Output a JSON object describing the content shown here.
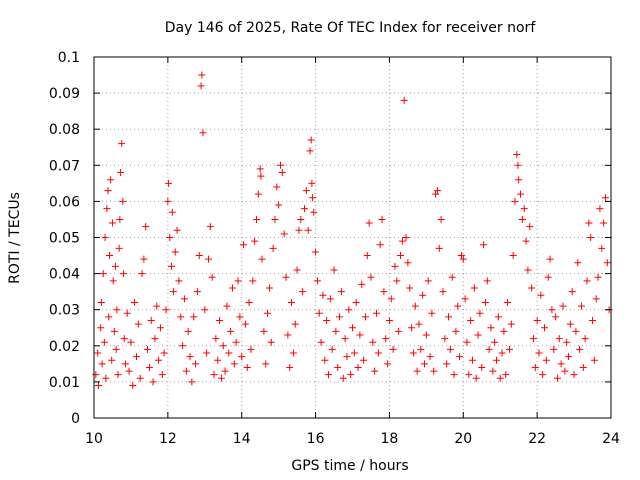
{
  "chart_data": {
    "type": "scatter",
    "title": "Day 146 of 2025, Rate Of TEC Index for receiver norf",
    "xlabel": "GPS time / hours",
    "ylabel": "ROTI / TECUs",
    "xlim": [
      10,
      24
    ],
    "ylim": [
      0,
      0.1
    ],
    "x_ticks": [
      10,
      12,
      14,
      16,
      18,
      20,
      22,
      24
    ],
    "x_tick_labels": [
      "10",
      "12",
      "14",
      "16",
      "18",
      "20",
      "22",
      "24"
    ],
    "y_ticks": [
      0,
      0.01,
      0.02,
      0.03,
      0.04,
      0.05,
      0.06,
      0.07,
      0.08,
      0.09,
      0.1
    ],
    "y_tick_labels": [
      "0",
      "0.01",
      "0.02",
      "0.03",
      "0.04",
      "0.05",
      "0.06",
      "0.07",
      "0.08",
      "0.09",
      "0.1"
    ],
    "grid": true,
    "marker": "plus",
    "color": "#ff0000",
    "series": [
      {
        "name": "ROTI",
        "points": [
          [
            10.05,
            0.012
          ],
          [
            10.1,
            0.018
          ],
          [
            10.12,
            0.009
          ],
          [
            10.18,
            0.025
          ],
          [
            10.2,
            0.032
          ],
          [
            10.22,
            0.015
          ],
          [
            10.25,
            0.04
          ],
          [
            10.28,
            0.021
          ],
          [
            10.3,
            0.05
          ],
          [
            10.32,
            0.011
          ],
          [
            10.35,
            0.058
          ],
          [
            10.38,
            0.063
          ],
          [
            10.4,
            0.028
          ],
          [
            10.42,
            0.045
          ],
          [
            10.45,
            0.066
          ],
          [
            10.48,
            0.016
          ],
          [
            10.5,
            0.054
          ],
          [
            10.52,
            0.038
          ],
          [
            10.55,
            0.024
          ],
          [
            10.58,
            0.042
          ],
          [
            10.6,
            0.019
          ],
          [
            10.62,
            0.03
          ],
          [
            10.65,
            0.012
          ],
          [
            10.68,
            0.047
          ],
          [
            10.7,
            0.055
          ],
          [
            10.72,
            0.068
          ],
          [
            10.75,
            0.076
          ],
          [
            10.78,
            0.06
          ],
          [
            10.8,
            0.04
          ],
          [
            10.82,
            0.022
          ],
          [
            10.85,
            0.015
          ],
          [
            10.9,
            0.029
          ],
          [
            10.95,
            0.013
          ],
          [
            11.0,
            0.021
          ],
          [
            11.05,
            0.009
          ],
          [
            11.1,
            0.032
          ],
          [
            11.15,
            0.017
          ],
          [
            11.2,
            0.026
          ],
          [
            11.25,
            0.011
          ],
          [
            11.3,
            0.04
          ],
          [
            11.35,
            0.044
          ],
          [
            11.4,
            0.053
          ],
          [
            11.45,
            0.019
          ],
          [
            11.5,
            0.014
          ],
          [
            11.55,
            0.027
          ],
          [
            11.6,
            0.01
          ],
          [
            11.65,
            0.022
          ],
          [
            11.7,
            0.031
          ],
          [
            11.75,
            0.016
          ],
          [
            11.8,
            0.025
          ],
          [
            11.85,
            0.012
          ],
          [
            11.9,
            0.018
          ],
          [
            11.95,
            0.03
          ],
          [
            12.0,
            0.06
          ],
          [
            12.02,
            0.065
          ],
          [
            12.05,
            0.05
          ],
          [
            12.1,
            0.042
          ],
          [
            12.12,
            0.057
          ],
          [
            12.15,
            0.035
          ],
          [
            12.2,
            0.046
          ],
          [
            12.25,
            0.052
          ],
          [
            12.3,
            0.038
          ],
          [
            12.35,
            0.028
          ],
          [
            12.4,
            0.02
          ],
          [
            12.45,
            0.033
          ],
          [
            12.5,
            0.013
          ],
          [
            12.55,
            0.024
          ],
          [
            12.6,
            0.017
          ],
          [
            12.65,
            0.01
          ],
          [
            12.7,
            0.028
          ],
          [
            12.75,
            0.015
          ],
          [
            12.8,
            0.035
          ],
          [
            12.85,
            0.045
          ],
          [
            12.9,
            0.092
          ],
          [
            12.92,
            0.095
          ],
          [
            12.95,
            0.079
          ],
          [
            13.0,
            0.03
          ],
          [
            13.05,
            0.018
          ],
          [
            13.1,
            0.044
          ],
          [
            13.15,
            0.053
          ],
          [
            13.2,
            0.039
          ],
          [
            13.25,
            0.012
          ],
          [
            13.3,
            0.022
          ],
          [
            13.35,
            0.016
          ],
          [
            13.4,
            0.027
          ],
          [
            13.45,
            0.011
          ],
          [
            13.5,
            0.02
          ],
          [
            13.55,
            0.013
          ],
          [
            13.6,
            0.031
          ],
          [
            13.65,
            0.018
          ],
          [
            13.7,
            0.024
          ],
          [
            13.75,
            0.036
          ],
          [
            13.8,
            0.015
          ],
          [
            13.85,
            0.021
          ],
          [
            13.9,
            0.038
          ],
          [
            13.95,
            0.028
          ],
          [
            14.0,
            0.017
          ],
          [
            14.05,
            0.048
          ],
          [
            14.1,
            0.026
          ],
          [
            14.15,
            0.014
          ],
          [
            14.2,
            0.032
          ],
          [
            14.25,
            0.019
          ],
          [
            14.3,
            0.038
          ],
          [
            14.35,
            0.049
          ],
          [
            14.4,
            0.055
          ],
          [
            14.45,
            0.062
          ],
          [
            14.5,
            0.069
          ],
          [
            14.52,
            0.067
          ],
          [
            14.55,
            0.044
          ],
          [
            14.6,
            0.024
          ],
          [
            14.65,
            0.015
          ],
          [
            14.7,
            0.029
          ],
          [
            14.75,
            0.036
          ],
          [
            14.8,
            0.021
          ],
          [
            14.85,
            0.047
          ],
          [
            14.9,
            0.055
          ],
          [
            14.95,
            0.064
          ],
          [
            15.0,
            0.059
          ],
          [
            15.05,
            0.07
          ],
          [
            15.1,
            0.068
          ],
          [
            15.15,
            0.051
          ],
          [
            15.2,
            0.039
          ],
          [
            15.25,
            0.023
          ],
          [
            15.3,
            0.014
          ],
          [
            15.35,
            0.032
          ],
          [
            15.4,
            0.018
          ],
          [
            15.45,
            0.026
          ],
          [
            15.5,
            0.041
          ],
          [
            15.55,
            0.052
          ],
          [
            15.6,
            0.055
          ],
          [
            15.65,
            0.035
          ],
          [
            15.7,
            0.058
          ],
          [
            15.75,
            0.063
          ],
          [
            15.8,
            0.052
          ],
          [
            15.85,
            0.074
          ],
          [
            15.88,
            0.077
          ],
          [
            15.9,
            0.065
          ],
          [
            15.92,
            0.061
          ],
          [
            15.95,
            0.057
          ],
          [
            16.0,
            0.046
          ],
          [
            16.05,
            0.038
          ],
          [
            16.1,
            0.029
          ],
          [
            16.15,
            0.021
          ],
          [
            16.2,
            0.034
          ],
          [
            16.25,
            0.016
          ],
          [
            16.3,
            0.027
          ],
          [
            16.35,
            0.012
          ],
          [
            16.4,
            0.033
          ],
          [
            16.45,
            0.019
          ],
          [
            16.5,
            0.041
          ],
          [
            16.55,
            0.024
          ],
          [
            16.6,
            0.014
          ],
          [
            16.65,
            0.028
          ],
          [
            16.7,
            0.035
          ],
          [
            16.75,
            0.011
          ],
          [
            16.8,
            0.022
          ],
          [
            16.85,
            0.017
          ],
          [
            16.9,
            0.03
          ],
          [
            16.95,
            0.012
          ],
          [
            17.0,
            0.025
          ],
          [
            17.05,
            0.018
          ],
          [
            17.1,
            0.032
          ],
          [
            17.15,
            0.014
          ],
          [
            17.2,
            0.023
          ],
          [
            17.25,
            0.037
          ],
          [
            17.3,
            0.016
          ],
          [
            17.35,
            0.028
          ],
          [
            17.4,
            0.045
          ],
          [
            17.45,
            0.054
          ],
          [
            17.5,
            0.039
          ],
          [
            17.55,
            0.021
          ],
          [
            17.6,
            0.013
          ],
          [
            17.65,
            0.029
          ],
          [
            17.7,
            0.018
          ],
          [
            17.75,
            0.048
          ],
          [
            17.8,
            0.055
          ],
          [
            17.85,
            0.035
          ],
          [
            17.9,
            0.022
          ],
          [
            17.95,
            0.015
          ],
          [
            18.0,
            0.027
          ],
          [
            18.05,
            0.033
          ],
          [
            18.1,
            0.019
          ],
          [
            18.15,
            0.042
          ],
          [
            18.2,
            0.038
          ],
          [
            18.25,
            0.024
          ],
          [
            18.3,
            0.045
          ],
          [
            18.35,
            0.049
          ],
          [
            18.4,
            0.088
          ],
          [
            18.45,
            0.05
          ],
          [
            18.5,
            0.043
          ],
          [
            18.55,
            0.036
          ],
          [
            18.6,
            0.025
          ],
          [
            18.65,
            0.018
          ],
          [
            18.7,
            0.031
          ],
          [
            18.75,
            0.013
          ],
          [
            18.8,
            0.026
          ],
          [
            18.85,
            0.019
          ],
          [
            18.9,
            0.034
          ],
          [
            18.95,
            0.015
          ],
          [
            19.0,
            0.023
          ],
          [
            19.05,
            0.038
          ],
          [
            19.1,
            0.017
          ],
          [
            19.15,
            0.029
          ],
          [
            19.2,
            0.013
          ],
          [
            19.25,
            0.062
          ],
          [
            19.3,
            0.063
          ],
          [
            19.35,
            0.047
          ],
          [
            19.4,
            0.055
          ],
          [
            19.45,
            0.035
          ],
          [
            19.5,
            0.022
          ],
          [
            19.55,
            0.015
          ],
          [
            19.6,
            0.028
          ],
          [
            19.65,
            0.019
          ],
          [
            19.7,
            0.039
          ],
          [
            19.75,
            0.012
          ],
          [
            19.8,
            0.024
          ],
          [
            19.85,
            0.031
          ],
          [
            19.9,
            0.017
          ],
          [
            19.95,
            0.045
          ],
          [
            20.0,
            0.044
          ],
          [
            20.05,
            0.033
          ],
          [
            20.1,
            0.021
          ],
          [
            20.15,
            0.012
          ],
          [
            20.2,
            0.027
          ],
          [
            20.25,
            0.016
          ],
          [
            20.3,
            0.036
          ],
          [
            20.35,
            0.011
          ],
          [
            20.4,
            0.023
          ],
          [
            20.45,
            0.029
          ],
          [
            20.5,
            0.014
          ],
          [
            20.55,
            0.048
          ],
          [
            20.6,
            0.032
          ],
          [
            20.65,
            0.038
          ],
          [
            20.7,
            0.019
          ],
          [
            20.75,
            0.025
          ],
          [
            20.8,
            0.013
          ],
          [
            20.85,
            0.021
          ],
          [
            20.9,
            0.016
          ],
          [
            20.95,
            0.028
          ],
          [
            21.0,
            0.011
          ],
          [
            21.05,
            0.018
          ],
          [
            21.1,
            0.024
          ],
          [
            21.15,
            0.012
          ],
          [
            21.2,
            0.032
          ],
          [
            21.25,
            0.019
          ],
          [
            21.3,
            0.026
          ],
          [
            21.35,
            0.045
          ],
          [
            21.4,
            0.06
          ],
          [
            21.45,
            0.073
          ],
          [
            21.48,
            0.07
          ],
          [
            21.5,
            0.066
          ],
          [
            21.55,
            0.062
          ],
          [
            21.6,
            0.055
          ],
          [
            21.65,
            0.058
          ],
          [
            21.7,
            0.049
          ],
          [
            21.75,
            0.041
          ],
          [
            21.8,
            0.053
          ],
          [
            21.85,
            0.036
          ],
          [
            21.9,
            0.022
          ],
          [
            21.95,
            0.014
          ],
          [
            22.0,
            0.027
          ],
          [
            22.05,
            0.018
          ],
          [
            22.1,
            0.034
          ],
          [
            22.15,
            0.012
          ],
          [
            22.2,
            0.025
          ],
          [
            22.25,
            0.016
          ],
          [
            22.3,
            0.039
          ],
          [
            22.35,
            0.044
          ],
          [
            22.4,
            0.03
          ],
          [
            22.45,
            0.019
          ],
          [
            22.5,
            0.028
          ],
          [
            22.55,
            0.011
          ],
          [
            22.6,
            0.022
          ],
          [
            22.65,
            0.015
          ],
          [
            22.7,
            0.031
          ],
          [
            22.75,
            0.013
          ],
          [
            22.8,
            0.021
          ],
          [
            22.85,
            0.017
          ],
          [
            22.9,
            0.026
          ],
          [
            22.95,
            0.035
          ],
          [
            23.0,
            0.012
          ],
          [
            23.05,
            0.024
          ],
          [
            23.1,
            0.043
          ],
          [
            23.15,
            0.019
          ],
          [
            23.2,
            0.031
          ],
          [
            23.25,
            0.014
          ],
          [
            23.3,
            0.022
          ],
          [
            23.35,
            0.038
          ],
          [
            23.4,
            0.054
          ],
          [
            23.45,
            0.05
          ],
          [
            23.5,
            0.027
          ],
          [
            23.55,
            0.016
          ],
          [
            23.6,
            0.033
          ],
          [
            23.65,
            0.039
          ],
          [
            23.7,
            0.058
          ],
          [
            23.75,
            0.047
          ],
          [
            23.8,
            0.054
          ],
          [
            23.85,
            0.061
          ],
          [
            23.9,
            0.043
          ],
          [
            23.95,
            0.03
          ]
        ]
      }
    ]
  }
}
